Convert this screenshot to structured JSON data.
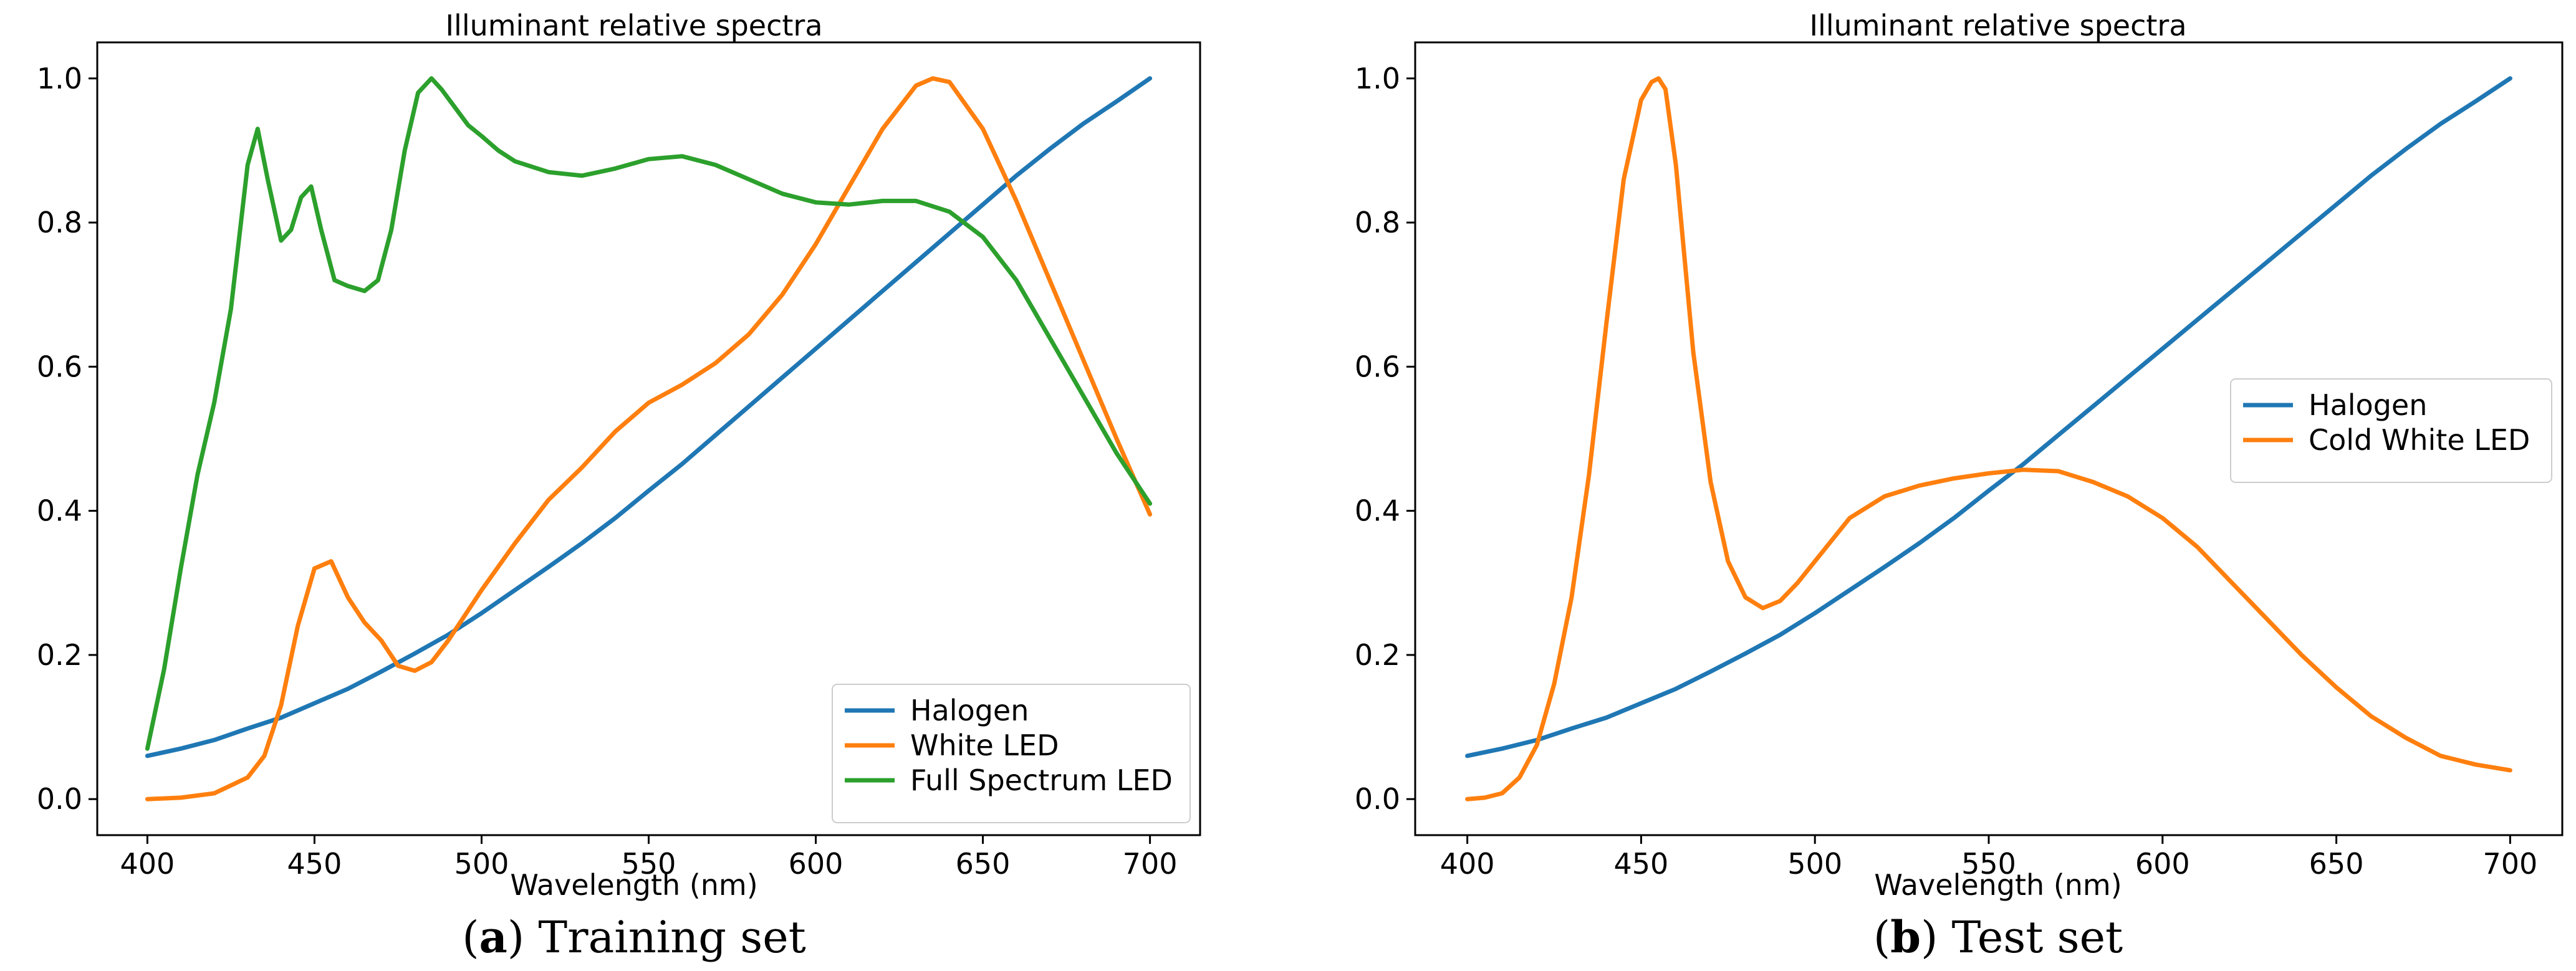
{
  "chart_data": [
    {
      "type": "line",
      "title": "Illuminant relative spectra",
      "xlabel": "Wavelength (nm)",
      "ylabel": "",
      "xlim": [
        385,
        715
      ],
      "ylim": [
        -0.05,
        1.05
      ],
      "xticks": [
        400,
        450,
        500,
        550,
        600,
        650,
        700
      ],
      "yticks": [
        0.0,
        0.2,
        0.4,
        0.6,
        0.8,
        1.0
      ],
      "ytick_labels": [
        "0.0",
        "0.2",
        "0.4",
        "0.6",
        "0.8",
        "1.0"
      ],
      "legend_position": "lower-right",
      "caption_letter": "a",
      "caption_text": "Training set",
      "series": [
        {
          "name": "Halogen",
          "color": "#1f77b4",
          "x": [
            400,
            410,
            420,
            430,
            440,
            450,
            460,
            470,
            480,
            490,
            500,
            510,
            520,
            530,
            540,
            550,
            560,
            570,
            580,
            590,
            600,
            610,
            620,
            630,
            640,
            650,
            660,
            670,
            680,
            690,
            700
          ],
          "y": [
            0.06,
            0.07,
            0.082,
            0.098,
            0.113,
            0.133,
            0.153,
            0.177,
            0.202,
            0.228,
            0.258,
            0.29,
            0.322,
            0.355,
            0.39,
            0.428,
            0.465,
            0.505,
            0.545,
            0.585,
            0.625,
            0.665,
            0.705,
            0.745,
            0.785,
            0.825,
            0.865,
            0.902,
            0.937,
            0.968,
            1.0
          ]
        },
        {
          "name": "White LED",
          "color": "#ff7f0e",
          "x": [
            400,
            410,
            420,
            430,
            435,
            440,
            445,
            450,
            455,
            460,
            465,
            470,
            475,
            480,
            485,
            490,
            500,
            510,
            520,
            530,
            540,
            550,
            560,
            570,
            580,
            590,
            600,
            610,
            620,
            630,
            635,
            640,
            650,
            660,
            670,
            680,
            690,
            700
          ],
          "y": [
            0.0,
            0.002,
            0.008,
            0.03,
            0.06,
            0.13,
            0.24,
            0.32,
            0.33,
            0.28,
            0.245,
            0.22,
            0.185,
            0.178,
            0.19,
            0.22,
            0.29,
            0.355,
            0.415,
            0.46,
            0.51,
            0.55,
            0.575,
            0.605,
            0.645,
            0.7,
            0.77,
            0.85,
            0.93,
            0.99,
            1.0,
            0.995,
            0.93,
            0.83,
            0.72,
            0.61,
            0.5,
            0.395
          ]
        },
        {
          "name": "Full Spectrum LED",
          "color": "#2ca02c",
          "x": [
            400,
            405,
            410,
            415,
            420,
            425,
            430,
            433,
            436,
            440,
            443,
            446,
            449,
            452,
            456,
            460,
            465,
            469,
            473,
            477,
            481,
            485,
            488,
            492,
            496,
            500,
            505,
            510,
            520,
            530,
            540,
            550,
            560,
            570,
            580,
            590,
            600,
            610,
            620,
            630,
            640,
            650,
            660,
            670,
            680,
            690,
            700
          ],
          "y": [
            0.07,
            0.18,
            0.32,
            0.45,
            0.55,
            0.68,
            0.88,
            0.93,
            0.86,
            0.775,
            0.79,
            0.835,
            0.85,
            0.79,
            0.72,
            0.712,
            0.705,
            0.72,
            0.79,
            0.9,
            0.98,
            1.0,
            0.985,
            0.96,
            0.935,
            0.92,
            0.9,
            0.885,
            0.87,
            0.865,
            0.875,
            0.888,
            0.892,
            0.88,
            0.86,
            0.84,
            0.828,
            0.825,
            0.83,
            0.83,
            0.815,
            0.78,
            0.72,
            0.64,
            0.56,
            0.48,
            0.41
          ]
        }
      ]
    },
    {
      "type": "line",
      "title": "Illuminant relative spectra",
      "xlabel": "Wavelength (nm)",
      "ylabel": "",
      "xlim": [
        385,
        715
      ],
      "ylim": [
        -0.05,
        1.05
      ],
      "xticks": [
        400,
        450,
        500,
        550,
        600,
        650,
        700
      ],
      "yticks": [
        0.0,
        0.2,
        0.4,
        0.6,
        0.8,
        1.0
      ],
      "ytick_labels": [
        "0.0",
        "0.2",
        "0.4",
        "0.6",
        "0.8",
        "1.0"
      ],
      "legend_position": "center-right",
      "caption_letter": "b",
      "caption_text": "Test set",
      "series": [
        {
          "name": "Halogen",
          "color": "#1f77b4",
          "x": [
            400,
            410,
            420,
            430,
            440,
            450,
            460,
            470,
            480,
            490,
            500,
            510,
            520,
            530,
            540,
            550,
            560,
            570,
            580,
            590,
            600,
            610,
            620,
            630,
            640,
            650,
            660,
            670,
            680,
            690,
            700
          ],
          "y": [
            0.06,
            0.07,
            0.082,
            0.098,
            0.113,
            0.133,
            0.153,
            0.177,
            0.202,
            0.228,
            0.258,
            0.29,
            0.322,
            0.355,
            0.39,
            0.428,
            0.465,
            0.505,
            0.545,
            0.585,
            0.625,
            0.665,
            0.705,
            0.745,
            0.785,
            0.825,
            0.865,
            0.902,
            0.937,
            0.968,
            1.0
          ]
        },
        {
          "name": "Cold White LED",
          "color": "#ff7f0e",
          "x": [
            400,
            405,
            410,
            415,
            420,
            425,
            430,
            435,
            440,
            445,
            450,
            453,
            455,
            457,
            460,
            465,
            470,
            475,
            480,
            485,
            490,
            495,
            500,
            510,
            520,
            530,
            540,
            550,
            560,
            570,
            580,
            590,
            600,
            610,
            620,
            630,
            640,
            650,
            660,
            670,
            680,
            690,
            700
          ],
          "y": [
            0.0,
            0.002,
            0.008,
            0.03,
            0.075,
            0.16,
            0.28,
            0.45,
            0.66,
            0.86,
            0.97,
            0.995,
            1.0,
            0.985,
            0.88,
            0.62,
            0.44,
            0.33,
            0.28,
            0.265,
            0.275,
            0.3,
            0.33,
            0.39,
            0.42,
            0.435,
            0.445,
            0.452,
            0.457,
            0.455,
            0.44,
            0.42,
            0.39,
            0.35,
            0.3,
            0.25,
            0.2,
            0.155,
            0.115,
            0.085,
            0.06,
            0.048,
            0.04
          ]
        }
      ]
    }
  ]
}
